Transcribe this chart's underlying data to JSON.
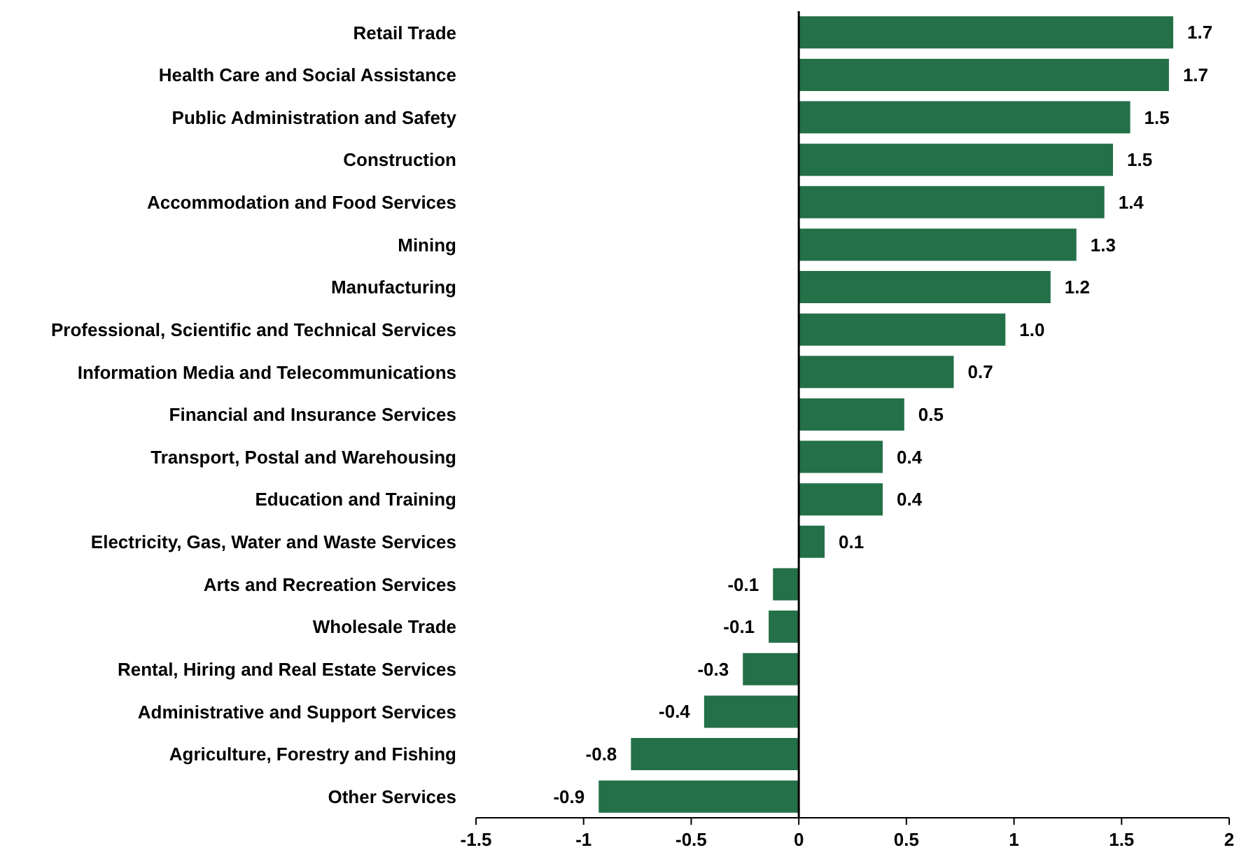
{
  "chart_data": {
    "type": "bar",
    "orientation": "horizontal",
    "categories": [
      "Retail Trade",
      "Health Care and Social Assistance",
      "Public Administration and Safety",
      "Construction",
      "Accommodation and Food Services",
      "Mining",
      "Manufacturing",
      "Professional, Scientific and Technical Services",
      "Information Media and Telecommunications",
      "Financial and Insurance Services",
      "Transport, Postal and Warehousing",
      "Education and Training",
      "Electricity, Gas, Water and Waste Services",
      "Arts and Recreation Services",
      "Wholesale Trade",
      "Rental, Hiring and Real Estate Services",
      "Administrative and Support Services",
      "Agriculture, Forestry and Fishing",
      "Other Services"
    ],
    "values": [
      1.74,
      1.72,
      1.54,
      1.46,
      1.42,
      1.29,
      1.17,
      0.96,
      0.72,
      0.49,
      0.39,
      0.39,
      0.12,
      -0.12,
      -0.14,
      -0.26,
      -0.44,
      -0.78,
      -0.93
    ],
    "value_labels": [
      "1.7",
      "1.7",
      "1.5",
      "1.5",
      "1.4",
      "1.3",
      "1.2",
      "1.0",
      "0.7",
      "0.5",
      "0.4",
      "0.4",
      "0.1",
      "-0.1",
      "-0.1",
      "-0.3",
      "-0.4",
      "-0.8",
      "-0.9"
    ],
    "color": "#247048",
    "xlim": [
      -1.5,
      2
    ],
    "xticks": [
      -1.5,
      -1,
      -0.5,
      0,
      0.5,
      1,
      1.5,
      2
    ],
    "ref_lines": [
      {
        "axis": "x",
        "value": 0,
        "color": "#000000"
      }
    ]
  }
}
